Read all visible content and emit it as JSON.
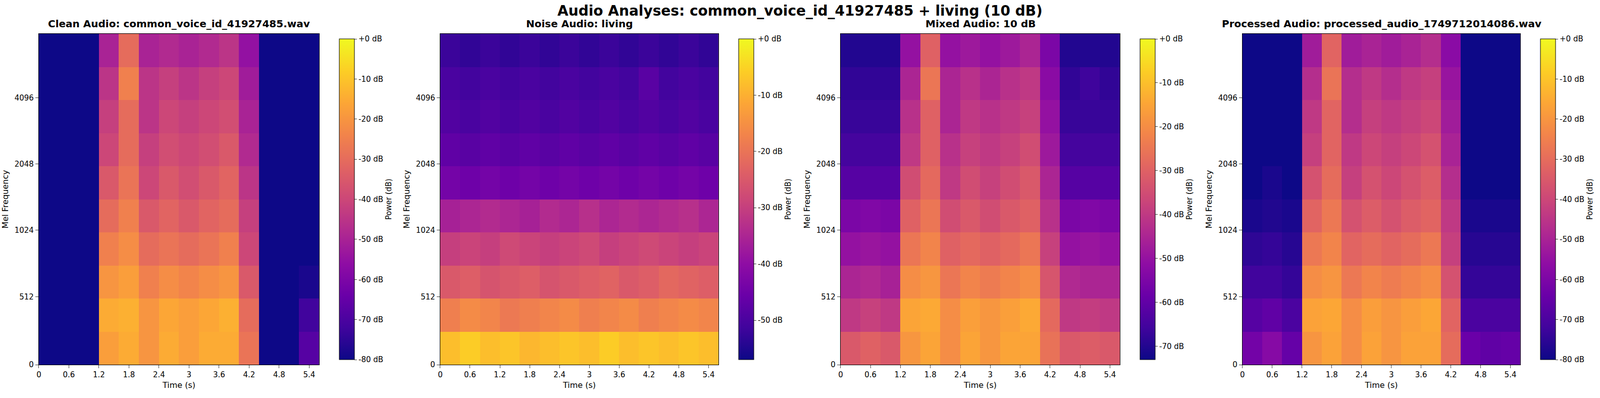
{
  "title": "Audio Analyses: common_voice_id_41927485 + living (10 dB)",
  "chart_data": [
    {
      "type": "spectrogram",
      "title": "Clean Audio: common_voice_id_41927485.wav",
      "x_label": "Time (s)",
      "y_label": "Mel Frequency",
      "color": "plasma",
      "xlim": [
        0,
        5.6
      ],
      "ylim": [
        0,
        8000
      ],
      "xticks": [
        0,
        0.6,
        1.2,
        1.8,
        2.4,
        3,
        3.6,
        4.2,
        4.8,
        5.4
      ],
      "yticks": [
        0,
        512,
        1024,
        2048,
        4096
      ],
      "x_bins": [
        0,
        0.4,
        0.8,
        1.2,
        1.6,
        2.0,
        2.4,
        2.8,
        3.2,
        3.6,
        4.0,
        4.4,
        4.8,
        5.2,
        5.6
      ],
      "y_bins": [
        0,
        250,
        500,
        750,
        1000,
        1414,
        2000,
        2828,
        4000,
        5657,
        8000
      ],
      "z": [
        [
          -80,
          -80,
          -80,
          -18,
          -15,
          -20,
          -15,
          -18,
          -15,
          -15,
          -28,
          -80,
          -80,
          -68
        ],
        [
          -80,
          -80,
          -80,
          -15,
          -14,
          -20,
          -16,
          -18,
          -16,
          -14,
          -30,
          -80,
          -80,
          -72
        ],
        [
          -80,
          -80,
          -80,
          -20,
          -18,
          -25,
          -22,
          -24,
          -22,
          -20,
          -35,
          -80,
          -80,
          -78
        ],
        [
          -80,
          -80,
          -80,
          -25,
          -22,
          -30,
          -28,
          -30,
          -28,
          -25,
          -40,
          -80,
          -80,
          -80
        ],
        [
          -80,
          -80,
          -80,
          -30,
          -25,
          -35,
          -32,
          -35,
          -32,
          -30,
          -42,
          -80,
          -80,
          -80
        ],
        [
          -80,
          -80,
          -80,
          -35,
          -28,
          -40,
          -35,
          -38,
          -35,
          -32,
          -45,
          -80,
          -80,
          -80
        ],
        [
          -80,
          -80,
          -80,
          -40,
          -30,
          -42,
          -38,
          -40,
          -38,
          -35,
          -48,
          -80,
          -80,
          -80
        ],
        [
          -80,
          -80,
          -80,
          -42,
          -30,
          -45,
          -40,
          -42,
          -40,
          -38,
          -50,
          -80,
          -80,
          -80
        ],
        [
          -80,
          -80,
          -80,
          -45,
          -25,
          -45,
          -42,
          -45,
          -42,
          -40,
          -52,
          -80,
          -80,
          -80
        ],
        [
          -80,
          -80,
          -80,
          -50,
          -30,
          -50,
          -48,
          -50,
          -48,
          -45,
          -55,
          -80,
          -80,
          -80
        ]
      ],
      "colorbar": {
        "title": "Power (dB)",
        "range": [
          -80,
          0
        ],
        "ticks": [
          {
            "value": 0,
            "label": "+0 dB"
          },
          {
            "value": -10,
            "label": "-10 dB"
          },
          {
            "value": -20,
            "label": "-20 dB"
          },
          {
            "value": -30,
            "label": "-30 dB"
          },
          {
            "value": -40,
            "label": "-40 dB"
          },
          {
            "value": -50,
            "label": "-50 dB"
          },
          {
            "value": -60,
            "label": "-60 dB"
          },
          {
            "value": -70,
            "label": "-70 dB"
          },
          {
            "value": -80,
            "label": "-80 dB"
          }
        ]
      }
    },
    {
      "type": "spectrogram",
      "title": "Noise Audio: living",
      "x_label": "Time (s)",
      "y_label": "Mel Frequency",
      "color": "plasma",
      "xlim": [
        0,
        5.6
      ],
      "ylim": [
        0,
        8000
      ],
      "xticks": [
        0,
        0.6,
        1.2,
        1.8,
        2.4,
        3,
        3.6,
        4.2,
        4.8,
        5.4
      ],
      "yticks": [
        0,
        512,
        1024,
        2048,
        4096
      ],
      "x_bins": [
        0,
        0.4,
        0.8,
        1.2,
        1.6,
        2.0,
        2.4,
        2.8,
        3.2,
        3.6,
        4.0,
        4.4,
        4.8,
        5.2,
        5.6
      ],
      "y_bins": [
        0,
        250,
        500,
        750,
        1000,
        1414,
        2000,
        2828,
        4000,
        5657,
        8000
      ],
      "z": [
        [
          -8,
          -6,
          -8,
          -7,
          -9,
          -8,
          -7,
          -8,
          -6,
          -8,
          -7,
          -8,
          -7,
          -8
        ],
        [
          -18,
          -16,
          -17,
          -19,
          -18,
          -17,
          -16,
          -18,
          -17,
          -16,
          -18,
          -17,
          -16,
          -17
        ],
        [
          -25,
          -24,
          -26,
          -25,
          -24,
          -26,
          -25,
          -24,
          -23,
          -25,
          -24,
          -22,
          -23,
          -24
        ],
        [
          -30,
          -29,
          -30,
          -28,
          -29,
          -30,
          -29,
          -28,
          -30,
          -29,
          -28,
          -29,
          -30,
          -29
        ],
        [
          -36,
          -35,
          -34,
          -35,
          -36,
          -34,
          -35,
          -33,
          -35,
          -34,
          -35,
          -34,
          -33,
          -35
        ],
        [
          -44,
          -45,
          -44,
          -45,
          -44,
          -45,
          -44,
          -45,
          -44,
          -45,
          -44,
          -45,
          -44,
          -45
        ],
        [
          -47,
          -48,
          -47,
          -48,
          -47,
          -48,
          -47,
          -48,
          -47,
          -48,
          -47,
          -48,
          -47,
          -48
        ],
        [
          -49,
          -50,
          -49,
          -50,
          -49,
          -50,
          -49,
          -50,
          -49,
          -50,
          -49,
          -50,
          -49,
          -50
        ],
        [
          -50,
          -51,
          -50,
          -51,
          -50,
          -51,
          -50,
          -51,
          -50,
          -51,
          -48,
          -51,
          -50,
          -51
        ],
        [
          -52,
          -53,
          -52,
          -53,
          -52,
          -53,
          -52,
          -53,
          -52,
          -53,
          -52,
          -53,
          -52,
          -53
        ]
      ],
      "colorbar": {
        "title": "Power (dB)",
        "range": [
          -57,
          0
        ],
        "ticks": [
          {
            "value": 0,
            "label": "+0 dB"
          },
          {
            "value": -10,
            "label": "-10 dB"
          },
          {
            "value": -20,
            "label": "-20 dB"
          },
          {
            "value": -30,
            "label": "-30 dB"
          },
          {
            "value": -40,
            "label": "-40 dB"
          },
          {
            "value": -50,
            "label": "-50 dB"
          }
        ]
      }
    },
    {
      "type": "spectrogram",
      "title": "Mixed Audio: 10 dB",
      "x_label": "Time (s)",
      "y_label": "Mel Frequency",
      "color": "plasma",
      "xlim": [
        0,
        5.6
      ],
      "ylim": [
        0,
        8000
      ],
      "xticks": [
        0,
        0.6,
        1.2,
        1.8,
        2.4,
        3,
        3.6,
        4.2,
        4.8,
        5.4
      ],
      "yticks": [
        0,
        512,
        1024,
        2048,
        4096
      ],
      "x_bins": [
        0,
        0.4,
        0.8,
        1.2,
        1.6,
        2.0,
        2.4,
        2.8,
        3.2,
        3.6,
        4.0,
        4.4,
        4.8,
        5.2,
        5.6
      ],
      "y_bins": [
        0,
        250,
        500,
        750,
        1000,
        1414,
        2000,
        2828,
        4000,
        5657,
        8000
      ],
      "z": [
        [
          -32,
          -30,
          -32,
          -18,
          -15,
          -20,
          -15,
          -18,
          -15,
          -15,
          -26,
          -32,
          -31,
          -32
        ],
        [
          -40,
          -38,
          -40,
          -15,
          -14,
          -20,
          -16,
          -18,
          -16,
          -14,
          -28,
          -40,
          -39,
          -40
        ],
        [
          -45,
          -44,
          -46,
          -20,
          -18,
          -25,
          -22,
          -24,
          -22,
          -20,
          -33,
          -44,
          -45,
          -45
        ],
        [
          -50,
          -49,
          -50,
          -25,
          -22,
          -30,
          -28,
          -30,
          -28,
          -25,
          -38,
          -50,
          -49,
          -50
        ],
        [
          -55,
          -54,
          -55,
          -30,
          -25,
          -35,
          -32,
          -35,
          -32,
          -30,
          -42,
          -55,
          -54,
          -55
        ],
        [
          -62,
          -62,
          -62,
          -35,
          -28,
          -40,
          -35,
          -38,
          -35,
          -32,
          -45,
          -62,
          -62,
          -62
        ],
        [
          -65,
          -65,
          -65,
          -40,
          -30,
          -42,
          -38,
          -40,
          -38,
          -35,
          -48,
          -65,
          -65,
          -65
        ],
        [
          -67,
          -67,
          -67,
          -42,
          -30,
          -45,
          -40,
          -42,
          -40,
          -38,
          -50,
          -67,
          -67,
          -67
        ],
        [
          -68,
          -68,
          -68,
          -45,
          -25,
          -45,
          -42,
          -45,
          -42,
          -40,
          -52,
          -68,
          -66,
          -68
        ],
        [
          -70,
          -70,
          -70,
          -50,
          -30,
          -50,
          -48,
          -50,
          -48,
          -45,
          -55,
          -70,
          -70,
          -70
        ]
      ],
      "colorbar": {
        "title": "Power (dB)",
        "range": [
          -73,
          0
        ],
        "ticks": [
          {
            "value": 0,
            "label": "+0 dB"
          },
          {
            "value": -10,
            "label": "-10 dB"
          },
          {
            "value": -20,
            "label": "-20 dB"
          },
          {
            "value": -30,
            "label": "-30 dB"
          },
          {
            "value": -40,
            "label": "-40 dB"
          },
          {
            "value": -50,
            "label": "-50 dB"
          },
          {
            "value": -60,
            "label": "-60 dB"
          },
          {
            "value": -70,
            "label": "-70 dB"
          }
        ]
      }
    },
    {
      "type": "spectrogram",
      "title": "Processed Audio: processed_audio_1749712014086.wav",
      "x_label": "Time (s)",
      "y_label": "Mel Frequency",
      "color": "plasma",
      "xlim": [
        0,
        5.6
      ],
      "ylim": [
        0,
        8000
      ],
      "xticks": [
        0,
        0.6,
        1.2,
        1.8,
        2.4,
        3,
        3.6,
        4.2,
        4.8,
        5.4
      ],
      "yticks": [
        0,
        512,
        1024,
        2048,
        4096
      ],
      "x_bins": [
        0,
        0.4,
        0.8,
        1.2,
        1.6,
        2.0,
        2.4,
        2.8,
        3.2,
        3.6,
        4.0,
        4.4,
        4.8,
        5.2,
        5.6
      ],
      "y_bins": [
        0,
        250,
        500,
        750,
        1000,
        1414,
        2000,
        2828,
        4000,
        5657,
        8000
      ],
      "z": [
        [
          -62,
          -58,
          -65,
          -20,
          -17,
          -22,
          -17,
          -20,
          -17,
          -17,
          -30,
          -64,
          -66,
          -65
        ],
        [
          -68,
          -66,
          -70,
          -17,
          -16,
          -22,
          -18,
          -20,
          -18,
          -16,
          -32,
          -70,
          -70,
          -70
        ],
        [
          -72,
          -72,
          -74,
          -22,
          -20,
          -27,
          -24,
          -26,
          -24,
          -22,
          -37,
          -74,
          -74,
          -74
        ],
        [
          -75,
          -74,
          -76,
          -27,
          -24,
          -32,
          -30,
          -32,
          -30,
          -27,
          -42,
          -76,
          -76,
          -76
        ],
        [
          -78,
          -77,
          -78,
          -32,
          -27,
          -37,
          -34,
          -37,
          -34,
          -32,
          -44,
          -78,
          -78,
          -78
        ],
        [
          -80,
          -78,
          -80,
          -37,
          -30,
          -42,
          -37,
          -40,
          -37,
          -34,
          -47,
          -80,
          -80,
          -80
        ],
        [
          -80,
          -80,
          -80,
          -42,
          -32,
          -44,
          -40,
          -42,
          -40,
          -37,
          -50,
          -80,
          -80,
          -80
        ],
        [
          -80,
          -80,
          -80,
          -44,
          -32,
          -47,
          -42,
          -44,
          -42,
          -40,
          -52,
          -80,
          -80,
          -80
        ],
        [
          -80,
          -80,
          -80,
          -47,
          -28,
          -47,
          -44,
          -47,
          -44,
          -42,
          -54,
          -80,
          -80,
          -80
        ],
        [
          -80,
          -80,
          -80,
          -52,
          -32,
          -52,
          -50,
          -52,
          -50,
          -47,
          -57,
          -80,
          -80,
          -80
        ]
      ],
      "colorbar": {
        "title": "Power (dB)",
        "range": [
          -80,
          0
        ],
        "ticks": [
          {
            "value": 0,
            "label": "+0 dB"
          },
          {
            "value": -10,
            "label": "-10 dB"
          },
          {
            "value": -20,
            "label": "-20 dB"
          },
          {
            "value": -30,
            "label": "-30 dB"
          },
          {
            "value": -40,
            "label": "-40 dB"
          },
          {
            "value": -50,
            "label": "-50 dB"
          },
          {
            "value": -60,
            "label": "-60 dB"
          },
          {
            "value": -70,
            "label": "-70 dB"
          },
          {
            "value": -80,
            "label": "-80 dB"
          }
        ]
      }
    }
  ]
}
